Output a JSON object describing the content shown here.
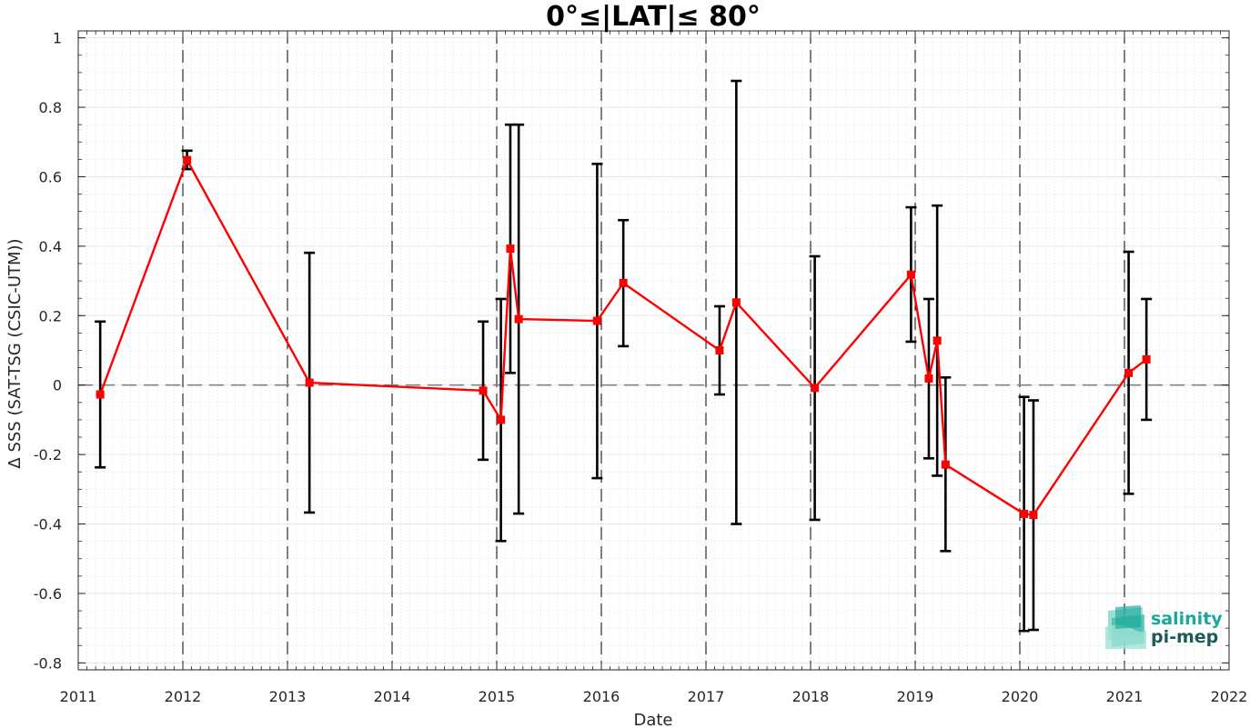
{
  "chart_data": {
    "type": "line",
    "title": "0°≤|LAT|≤ 80°",
    "xlabel": "Date",
    "ylabel": "Δ SSS (SAT-TSG (CSIC-UTM))",
    "xlim": [
      2011,
      2022
    ],
    "ylim": [
      -0.82,
      1.02
    ],
    "x_ticks": [
      "2011",
      "2012",
      "2013",
      "2014",
      "2015",
      "2016",
      "2017",
      "2018",
      "2019",
      "2020",
      "2021",
      "2022"
    ],
    "x_tick_values": [
      2011,
      2012,
      2013,
      2014,
      2015,
      2016,
      2017,
      2018,
      2019,
      2020,
      2021,
      2022
    ],
    "y_ticks": [
      "1",
      "0.8",
      "0.6",
      "0.4",
      "0.2",
      "0",
      "-0.2",
      "-0.4",
      "-0.6",
      "-0.8"
    ],
    "y_tick_values": [
      1,
      0.8,
      0.6,
      0.4,
      0.2,
      0,
      -0.2,
      -0.4,
      -0.6,
      -0.8
    ],
    "grid": true,
    "year_separators": [
      2012,
      2013,
      2014,
      2015,
      2016,
      2017,
      2018,
      2019,
      2020,
      2021
    ],
    "zero_line": 0,
    "series": [
      {
        "color": "#ff0000",
        "marker": "square",
        "points": [
          {
            "x": 2011.21,
            "y": -0.027,
            "lo": -0.237,
            "hi": 0.183
          },
          {
            "x": 2012.04,
            "y": 0.648,
            "lo": 0.622,
            "hi": 0.675
          },
          {
            "x": 2013.21,
            "y": 0.007,
            "lo": -0.367,
            "hi": 0.381
          },
          {
            "x": 2014.87,
            "y": -0.016,
            "lo": -0.215,
            "hi": 0.183
          },
          {
            "x": 2015.04,
            "y": -0.1,
            "lo": -0.449,
            "hi": 0.248
          },
          {
            "x": 2015.13,
            "y": 0.393,
            "lo": 0.035,
            "hi": 0.75
          },
          {
            "x": 2015.21,
            "y": 0.19,
            "lo": -0.37,
            "hi": 0.75
          },
          {
            "x": 2015.96,
            "y": 0.185,
            "lo": -0.268,
            "hi": 0.637
          },
          {
            "x": 2016.21,
            "y": 0.294,
            "lo": 0.112,
            "hi": 0.475
          },
          {
            "x": 2017.13,
            "y": 0.1,
            "lo": -0.027,
            "hi": 0.227
          },
          {
            "x": 2017.29,
            "y": 0.238,
            "lo": -0.4,
            "hi": 0.876
          },
          {
            "x": 2018.04,
            "y": -0.008,
            "lo": -0.388,
            "hi": 0.371
          },
          {
            "x": 2018.96,
            "y": 0.318,
            "lo": 0.125,
            "hi": 0.512
          },
          {
            "x": 2019.13,
            "y": 0.019,
            "lo": -0.211,
            "hi": 0.248
          },
          {
            "x": 2019.21,
            "y": 0.128,
            "lo": -0.261,
            "hi": 0.517
          },
          {
            "x": 2019.29,
            "y": -0.229,
            "lo": -0.478,
            "hi": 0.022
          },
          {
            "x": 2020.04,
            "y": -0.371,
            "lo": -0.708,
            "hi": -0.034
          },
          {
            "x": 2020.13,
            "y": -0.374,
            "lo": -0.705,
            "hi": -0.044
          },
          {
            "x": 2021.04,
            "y": 0.035,
            "lo": -0.313,
            "hi": 0.384
          },
          {
            "x": 2021.21,
            "y": 0.074,
            "lo": -0.1,
            "hi": 0.248
          }
        ]
      }
    ]
  },
  "logo": {
    "line1": "salinity",
    "line2": "pi-mep"
  },
  "colors": {
    "series": "#ff0000",
    "errorbar": "#000000",
    "logo_teal": "#1aa89a",
    "logo_dark": "#1d5b57"
  }
}
